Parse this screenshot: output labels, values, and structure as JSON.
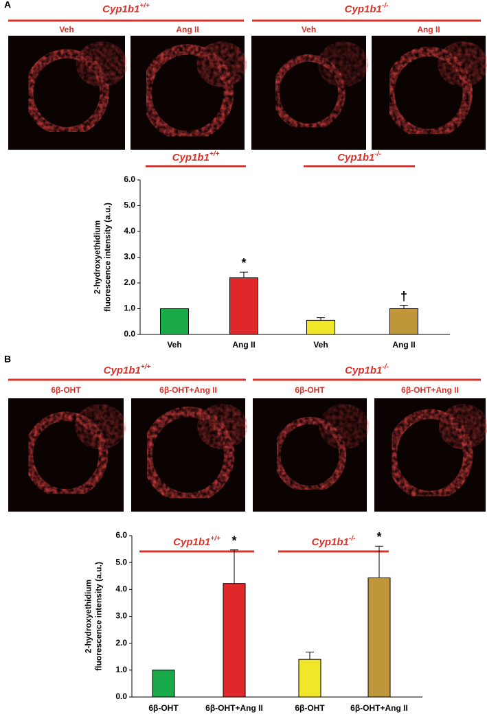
{
  "chart_data": [
    {
      "type": "bar",
      "panel": "A",
      "image_groups": [
        {
          "name": "Cyp1b1",
          "genotype": "+/+",
          "labels": [
            "Veh",
            "Ang II"
          ]
        },
        {
          "name": "Cyp1b1",
          "genotype": "-/-",
          "labels": [
            "Veh",
            "Ang II"
          ]
        }
      ],
      "chart_groups": [
        {
          "name": "Cyp1b1",
          "genotype": "+/+"
        },
        {
          "name": "Cyp1b1",
          "genotype": "-/-"
        }
      ],
      "ylabel": [
        "2-hydroxyethidium",
        "fluorescence intensity (a.u.)"
      ],
      "categories": [
        "Veh",
        "Ang II",
        "Veh",
        "Ang II"
      ],
      "values": [
        1.0,
        2.2,
        0.55,
        1.0
      ],
      "errors": [
        null,
        0.22,
        0.1,
        0.13
      ],
      "colors": [
        "#1aaa4a",
        "#e0282a",
        "#f0e62a",
        "#c0963a"
      ],
      "annotations": [
        {
          "index": 1,
          "text": "*"
        },
        {
          "index": 3,
          "text": "†"
        }
      ],
      "ylim": [
        0,
        6
      ],
      "yticks": [
        {
          "value": 0,
          "label": "0.0"
        },
        {
          "value": 1,
          "label": "1.0"
        },
        {
          "value": 2,
          "label": "2.0"
        },
        {
          "value": 3,
          "label": "3.0"
        },
        {
          "value": 4,
          "label": "4.0"
        },
        {
          "value": 5,
          "label": "5.0"
        },
        {
          "value": 6,
          "label": "6.0"
        }
      ]
    },
    {
      "type": "bar",
      "panel": "B",
      "image_groups": [
        {
          "name": "Cyp1b1",
          "genotype": "+/+",
          "labels": [
            "6β-OHT",
            "6β-OHT+Ang II"
          ]
        },
        {
          "name": "Cyp1b1",
          "genotype": "-/-",
          "labels": [
            "6β-OHT",
            "6β-OHT+Ang II"
          ]
        }
      ],
      "chart_groups": [
        {
          "name": "Cyp1b1",
          "genotype": "+/+"
        },
        {
          "name": "Cyp1b1",
          "genotype": "-/-"
        }
      ],
      "ylabel": [
        "2-hydroxyethidium",
        "fluorescence intensity (a.u.)"
      ],
      "categories": [
        "6β-OHT",
        "6β-OHT+Ang II",
        "6β-OHT",
        "6β-OHT+Ang II"
      ],
      "values": [
        1.0,
        4.22,
        1.4,
        4.43
      ],
      "errors": [
        null,
        1.25,
        0.27,
        1.18
      ],
      "colors": [
        "#1aaa4a",
        "#e0282a",
        "#f0e62a",
        "#c0963a"
      ],
      "annotations": [
        {
          "index": 1,
          "text": "*"
        },
        {
          "index": 3,
          "text": "*"
        }
      ],
      "ylim": [
        0,
        6
      ],
      "yticks": [
        {
          "value": 0,
          "label": "0.0"
        },
        {
          "value": 1,
          "label": "1.0"
        },
        {
          "value": 2,
          "label": "2.0"
        },
        {
          "value": 3,
          "label": "3.0"
        },
        {
          "value": 4,
          "label": "4.0"
        },
        {
          "value": 5,
          "label": "5.0"
        },
        {
          "value": 6,
          "label": "6.0"
        }
      ]
    }
  ]
}
